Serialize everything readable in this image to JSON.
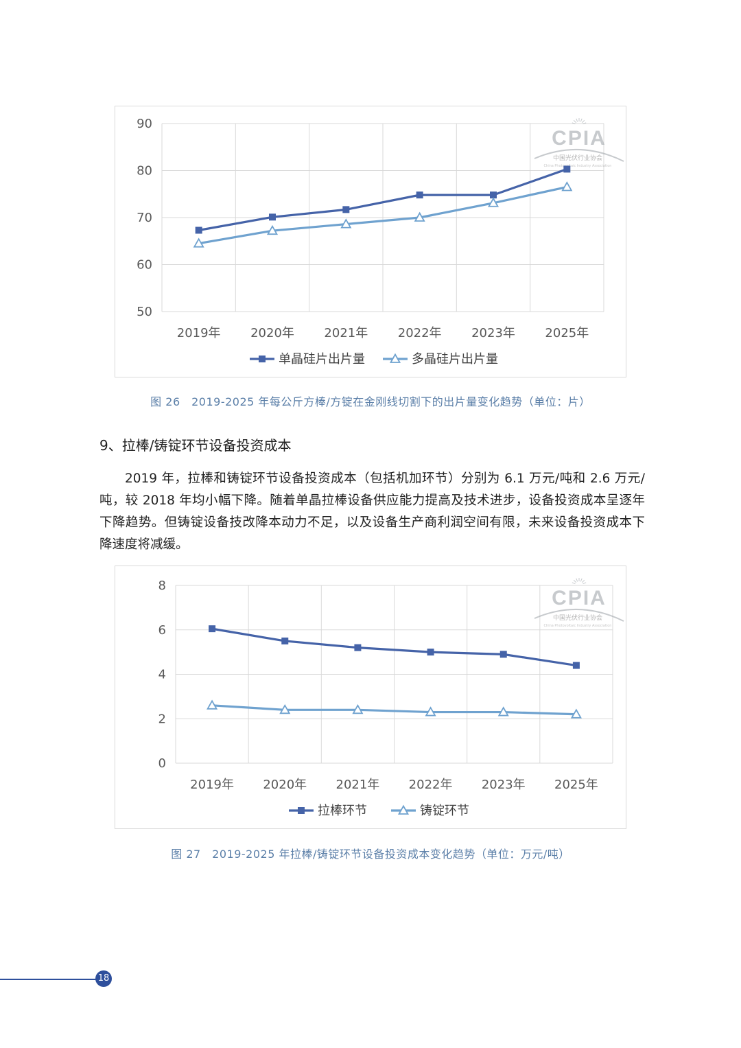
{
  "logo": {
    "text": "CPIA",
    "subtitle": "中国光伏行业协会",
    "subtitle_en": "China Photovoltaic Industry Association"
  },
  "colors": {
    "series_dark": "#4563a8",
    "series_light": "#6fa2cf",
    "grid": "#d9d9d9",
    "caption": "#5b7fa8",
    "page_accent": "#2e4f9c"
  },
  "chart_data": [
    {
      "type": "line",
      "title": "",
      "xlabel": "",
      "ylabel": "",
      "categories": [
        "2019年",
        "2020年",
        "2021年",
        "2022年",
        "2023年",
        "2025年"
      ],
      "series": [
        {
          "name": "单晶硅片出片量",
          "values": [
            67.3,
            70.1,
            71.7,
            74.8,
            74.8,
            80.3
          ],
          "marker": "square"
        },
        {
          "name": "多晶硅片出片量",
          "values": [
            64.5,
            67.2,
            68.6,
            70.0,
            73.1,
            76.5
          ],
          "marker": "triangle"
        }
      ],
      "ylim": [
        50,
        90
      ],
      "yticks": [
        50,
        60,
        70,
        80,
        90
      ],
      "grid": true,
      "legend": "bottom"
    },
    {
      "type": "line",
      "title": "",
      "xlabel": "",
      "ylabel": "",
      "categories": [
        "2019年",
        "2020年",
        "2021年",
        "2022年",
        "2023年",
        "2025年"
      ],
      "series": [
        {
          "name": "拉棒环节",
          "values": [
            6.05,
            5.5,
            5.2,
            5.0,
            4.9,
            4.4
          ],
          "marker": "square"
        },
        {
          "name": "铸锭环节",
          "values": [
            2.6,
            2.4,
            2.4,
            2.3,
            2.3,
            2.2
          ],
          "marker": "triangle"
        }
      ],
      "ylim": [
        0,
        8
      ],
      "yticks": [
        0,
        2,
        4,
        6,
        8
      ],
      "grid": true,
      "legend": "bottom"
    }
  ],
  "captions": {
    "fig26": "图 26　2019-2025 年每公斤方棒/方锭在金刚线切割下的出片量变化趋势（单位：片）",
    "fig27": "图 27　2019-2025 年拉棒/铸锭环节设备投资成本变化趋势（单位：万元/吨）"
  },
  "section": {
    "heading": "9、拉棒/铸锭环节设备投资成本",
    "paragraph": "2019 年，拉棒和铸锭环节设备投资成本（包括机加环节）分别为 6.1 万元/吨和 2.6 万元/吨，较 2018 年均小幅下降。随着单晶拉棒设备供应能力提高及技术进步，设备投资成本呈逐年下降趋势。但铸锭设备技改降本动力不足，以及设备生产商利润空间有限，未来设备投资成本下降速度将减缓。"
  },
  "page_number": "18"
}
